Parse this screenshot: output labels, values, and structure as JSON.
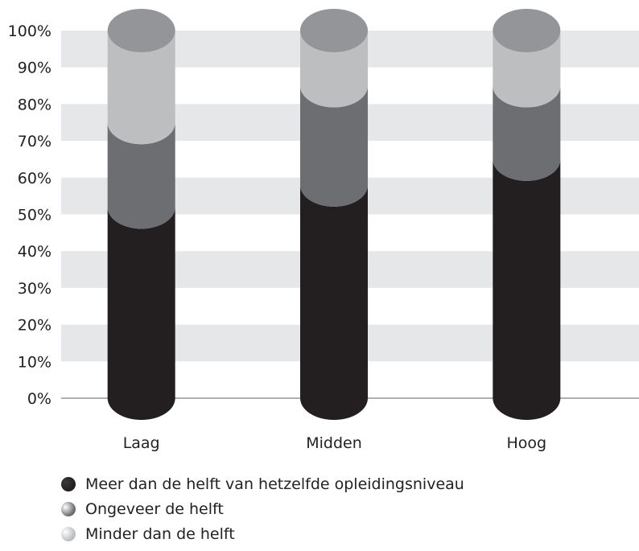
{
  "chart_data": {
    "type": "bar",
    "stacked": true,
    "style": "3d-cylinder",
    "categories": [
      "Laag",
      "Midden",
      "Hoog"
    ],
    "series": [
      {
        "name": "Meer dan de helft van hetzelfde opleidingsniveau",
        "values": [
          52,
          58,
          65
        ],
        "color": "#231f20"
      },
      {
        "name": "Ongeveer de helft",
        "values": [
          23,
          27,
          20
        ],
        "color": "#6d6e71"
      },
      {
        "name": "Minder dan de helft",
        "values": [
          25,
          15,
          15
        ],
        "color": "#bcbec0"
      }
    ],
    "top_cap_color": "#939598",
    "ylim": [
      0,
      100
    ],
    "yticks": [
      "0%",
      "10%",
      "20%",
      "30%",
      "40%",
      "50%",
      "60%",
      "70%",
      "80%",
      "90%",
      "100%"
    ],
    "grid_band_color": "#e6e7e8",
    "legend_position": "bottom-left"
  }
}
